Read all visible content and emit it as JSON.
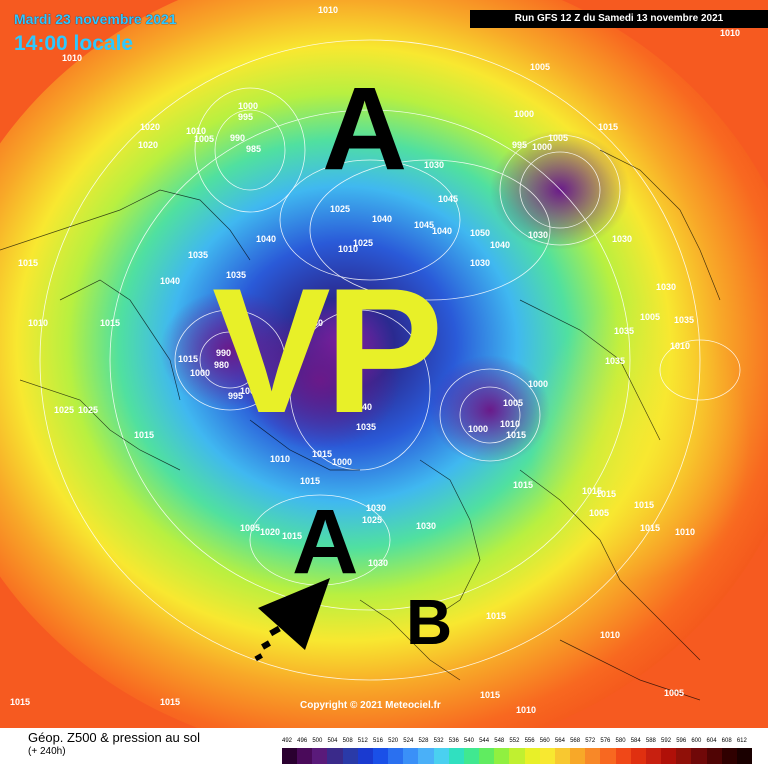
{
  "header": {
    "date": "Mardi 23 novembre 2021",
    "time": "14:00 locale",
    "run": "Run GFS 12 Z du Samedi 13 novembre 2021"
  },
  "copyright": "Copyright © 2021 Meteociel.fr",
  "annotations": {
    "anticyclone_north": "A",
    "vortex": "VP",
    "anticyclone_atlantic": "A",
    "depression": "B"
  },
  "pressure_labels": [
    "1010",
    "1010",
    "1005",
    "1010",
    "1020",
    "1020",
    "1010",
    "1005",
    "1000",
    "995",
    "990",
    "985",
    "1000",
    "1005",
    "995",
    "1000",
    "1015",
    "1030",
    "1040",
    "1045",
    "1045",
    "1050",
    "1040",
    "1030",
    "1030",
    "1040",
    "1040",
    "1035",
    "1015",
    "1010",
    "1015",
    "1035",
    "1025",
    "1010",
    "1025",
    "1030",
    "1000",
    "990",
    "980",
    "1000",
    "995",
    "1040",
    "1035",
    "1015",
    "1035",
    "1040",
    "1030",
    "1035",
    "1000",
    "1005",
    "1010",
    "1015",
    "1015",
    "1000",
    "1005",
    "1010",
    "1035",
    "1030",
    "1025",
    "1015",
    "1025",
    "1015",
    "1000",
    "1015",
    "1010",
    "1015",
    "1030",
    "1025",
    "1030",
    "1030",
    "1015",
    "1005",
    "1020",
    "1015",
    "1005",
    "1015",
    "1015",
    "1010",
    "1015",
    "1010",
    "1015",
    "1005",
    "1015",
    "1015",
    "1010"
  ],
  "legend": {
    "title": "Géop. Z500 & pression au sol",
    "subtitle": "(+ 240h)",
    "ticks": [
      "492",
      "496",
      "500",
      "504",
      "508",
      "512",
      "516",
      "520",
      "524",
      "528",
      "532",
      "536",
      "540",
      "544",
      "548",
      "552",
      "556",
      "560",
      "564",
      "568",
      "572",
      "576",
      "580",
      "584",
      "588",
      "592",
      "596",
      "600",
      "604",
      "608",
      "612"
    ],
    "colors": [
      "#2a0030",
      "#4a0a5a",
      "#5a1a7a",
      "#3a2a8a",
      "#2a3aa8",
      "#1a3ad0",
      "#1a50e8",
      "#2a70f0",
      "#3a90f8",
      "#4ab0f8",
      "#4ad0f0",
      "#30e0c0",
      "#40e890",
      "#60ec60",
      "#90f040",
      "#c0f030",
      "#e8f028",
      "#f8e830",
      "#f8c830",
      "#f8a828",
      "#f88828",
      "#f86820",
      "#f04818",
      "#e03010",
      "#c82010",
      "#b01008",
      "#901008",
      "#700808",
      "#500404",
      "#300000",
      "#1a0000"
    ]
  }
}
